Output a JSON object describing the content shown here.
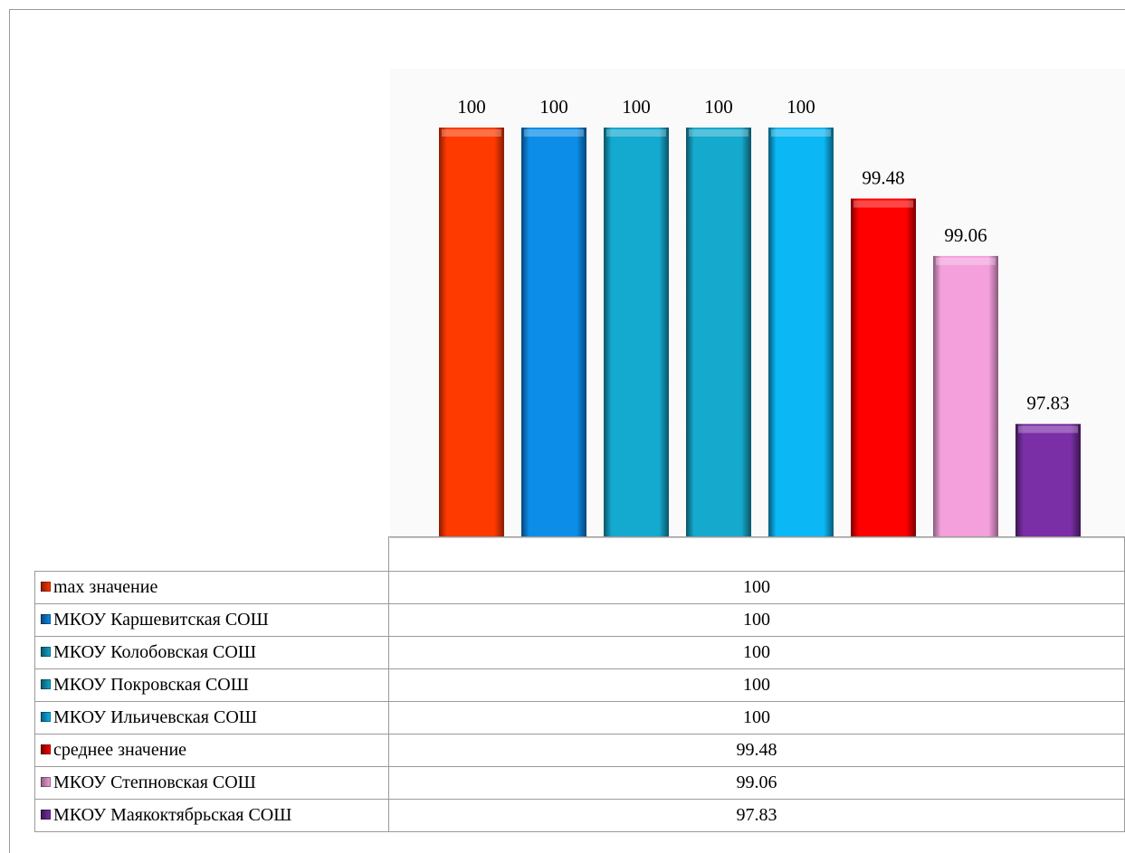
{
  "chart_data": {
    "type": "bar",
    "ylim": [
      97,
      100.3
    ],
    "series": [
      {
        "name": "max значение",
        "value": 100,
        "label": "100",
        "color": "#ff3a00",
        "dark": "#8a1c00"
      },
      {
        "name": "МКОУ Каршевитская СОШ",
        "value": 100,
        "label": "100",
        "color": "#0c8ee8",
        "dark": "#06457a"
      },
      {
        "name": "МКОУ Колобовская СОШ",
        "value": 100,
        "label": "100",
        "color": "#14a9cf",
        "dark": "#0a5466"
      },
      {
        "name": "МКОУ Покровская СОШ",
        "value": 100,
        "label": "100",
        "color": "#15a9cd",
        "dark": "#0a5466"
      },
      {
        "name": "МКОУ Ильичевская СОШ",
        "value": 100,
        "label": "100",
        "color": "#0bb8f5",
        "dark": "#065a78"
      },
      {
        "name": "среднее значение",
        "value": 99.48,
        "label": "99.48",
        "color": "#ff0000",
        "dark": "#7a0000"
      },
      {
        "name": "МКОУ Степновская СОШ",
        "value": 99.06,
        "label": "99.06",
        "color": "#f4a0dd",
        "dark": "#8a5a7c"
      },
      {
        "name": "МКОУ Маякоктябрьская СОШ",
        "value": 97.83,
        "label": "97.83",
        "color": "#7a2fa6",
        "dark": "#3a1650"
      }
    ]
  }
}
